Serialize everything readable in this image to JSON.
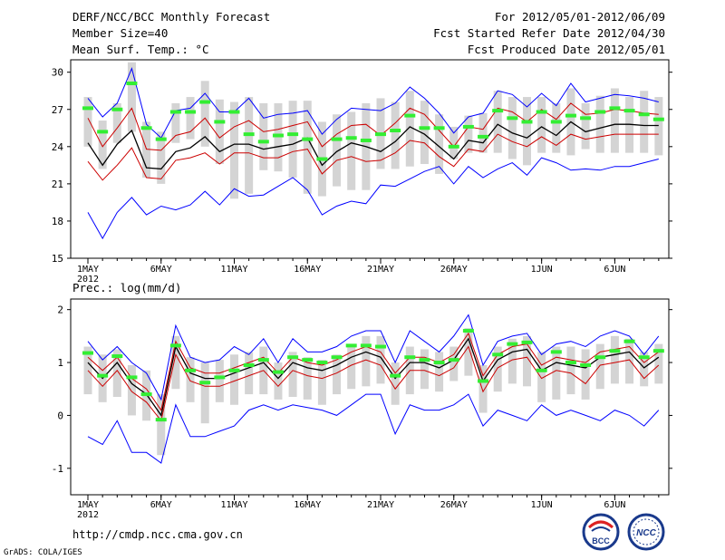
{
  "header": {
    "title": "DERF/NCC/BCC Monthly Forecast",
    "member_size": "Member Size=40",
    "variable_top": "Mean Surf. Temp.: °C",
    "period": "For 2012/05/01-2012/06/09",
    "refer_date": "Fcst Started Refer Date 2012/04/30",
    "produced_date": "Fcst Produced Date 2012/05/01"
  },
  "footer": {
    "url": "http://cmdp.ncc.cma.gov.cn",
    "grads": "GrADS: COLA/IGES"
  },
  "logos": {
    "bcc_text": "BCC",
    "ncc_text": "NCC"
  },
  "colors": {
    "envelope": "#0000ff",
    "spread": "#cc0000",
    "mean": "#000000",
    "marker": "#33ee33",
    "box": "#d4d4d4"
  },
  "chart_data": [
    {
      "type": "line",
      "title": "Mean Surf. Temp.: °C",
      "ylim": [
        15,
        31
      ],
      "yticks": [
        15,
        18,
        21,
        24,
        27,
        30
      ],
      "xticks": [
        {
          "day": 1,
          "label": "1MAY"
        },
        {
          "day": 6,
          "label": "6MAY"
        },
        {
          "day": 11,
          "label": "11MAY"
        },
        {
          "day": 16,
          "label": "16MAY"
        },
        {
          "day": 21,
          "label": "21MAY"
        },
        {
          "day": 26,
          "label": "26MAY"
        },
        {
          "day": 32,
          "label": "1JUN"
        },
        {
          "day": 37,
          "label": "6JUN"
        }
      ],
      "year_label": "2012",
      "days": [
        1,
        2,
        3,
        4,
        5,
        6,
        7,
        8,
        9,
        10,
        11,
        12,
        13,
        14,
        15,
        16,
        17,
        18,
        19,
        20,
        21,
        22,
        23,
        24,
        25,
        26,
        27,
        28,
        29,
        30,
        31,
        32,
        33,
        34,
        35,
        36,
        37,
        38,
        39,
        40
      ],
      "series": [
        {
          "name": "max",
          "color": "#0000ff",
          "values": [
            27.9,
            26.4,
            27.5,
            30.3,
            25.8,
            24.7,
            26.9,
            27.1,
            28.3,
            26.8,
            26.8,
            27.9,
            26.3,
            26.6,
            26.7,
            26.9,
            25.0,
            26.2,
            27.1,
            27.0,
            26.9,
            27.5,
            28.8,
            27.9,
            26.7,
            25.1,
            26.4,
            26.7,
            28.5,
            28.2,
            27.2,
            28.3,
            27.3,
            29.1,
            27.6,
            27.9,
            28.2,
            28.1,
            27.9,
            27.6
          ]
        },
        {
          "name": "p75",
          "color": "#cc0000",
          "values": [
            26.3,
            24.0,
            25.5,
            27.1,
            23.8,
            23.7,
            24.9,
            25.2,
            26.3,
            24.7,
            25.6,
            26.1,
            25.2,
            25.4,
            25.7,
            26.0,
            24.0,
            25.0,
            25.7,
            25.8,
            24.9,
            25.9,
            27.1,
            26.6,
            25.3,
            24.0,
            25.6,
            25.4,
            27.1,
            26.8,
            26.0,
            27.0,
            26.2,
            27.5,
            26.6,
            26.7,
            27.0,
            26.9,
            26.7,
            26.6
          ]
        },
        {
          "name": "mean",
          "color": "#000000",
          "values": [
            24.3,
            22.5,
            24.2,
            25.3,
            22.3,
            22.2,
            23.6,
            23.9,
            24.8,
            23.6,
            24.2,
            24.2,
            23.8,
            24.0,
            24.2,
            24.7,
            22.5,
            23.6,
            24.3,
            24.0,
            23.6,
            24.4,
            25.6,
            25.0,
            24.0,
            23.0,
            24.5,
            24.3,
            25.8,
            25.1,
            24.7,
            25.6,
            24.9,
            26.0,
            25.2,
            25.5,
            25.8,
            25.8,
            25.7,
            25.7
          ]
        },
        {
          "name": "p25",
          "color": "#cc0000",
          "values": [
            22.8,
            21.3,
            22.5,
            23.9,
            21.5,
            21.4,
            22.9,
            23.1,
            23.5,
            22.6,
            23.5,
            23.5,
            23.1,
            23.1,
            23.6,
            23.8,
            21.8,
            22.9,
            23.2,
            22.8,
            22.9,
            23.5,
            24.5,
            24.3,
            23.2,
            22.4,
            23.8,
            23.6,
            25.0,
            24.4,
            24.0,
            24.8,
            24.1,
            25.0,
            24.6,
            24.8,
            25.0,
            25.0,
            25.0,
            25.0
          ]
        },
        {
          "name": "min",
          "color": "#0000ff",
          "values": [
            18.7,
            16.6,
            18.7,
            19.9,
            18.5,
            19.2,
            18.9,
            19.3,
            20.4,
            19.3,
            20.6,
            20.0,
            20.1,
            20.8,
            21.5,
            20.5,
            18.5,
            19.2,
            19.6,
            19.4,
            20.9,
            20.8,
            21.4,
            22.0,
            22.4,
            21.0,
            22.4,
            21.5,
            22.2,
            22.7,
            21.7,
            23.1,
            22.7,
            22.1,
            22.2,
            22.1,
            22.4,
            22.4,
            22.7,
            23.0
          ]
        }
      ],
      "box_top": [
        28.0,
        26.1,
        27.5,
        30.8,
        26.0,
        25.2,
        27.5,
        28.0,
        29.3,
        27.8,
        27.6,
        28.0,
        27.5,
        27.5,
        27.7,
        27.7,
        26.0,
        26.6,
        26.8,
        27.5,
        27.9,
        27.6,
        28.5,
        27.7,
        26.6,
        25.6,
        26.5,
        26.7,
        28.5,
        28.0,
        28.0,
        28.0,
        27.5,
        28.7,
        27.5,
        28.1,
        28.7,
        28.0,
        28.5,
        28.0
      ],
      "box_bottom": [
        24.0,
        22.2,
        24.3,
        25.2,
        21.5,
        21.0,
        24.3,
        24.6,
        24.0,
        22.6,
        19.8,
        20.2,
        22.1,
        22.0,
        21.5,
        20.2,
        20.0,
        20.8,
        20.5,
        20.5,
        22.2,
        22.2,
        22.4,
        22.6,
        21.8,
        23.0,
        23.5,
        23.5,
        23.5,
        23.0,
        22.5,
        23.5,
        23.5,
        23.3,
        23.8,
        23.5,
        23.5,
        23.5,
        23.5,
        23.3
      ],
      "markers": [
        27.1,
        25.2,
        27.0,
        29.1,
        25.5,
        24.6,
        26.8,
        26.8,
        27.6,
        26.0,
        26.8,
        25.0,
        24.4,
        24.9,
        25.0,
        24.6,
        23.0,
        24.6,
        24.7,
        24.5,
        25.0,
        25.3,
        26.5,
        25.5,
        25.5,
        24.0,
        25.6,
        24.8,
        26.9,
        26.3,
        26.0,
        26.8,
        26.0,
        26.5,
        26.3,
        26.8,
        27.1,
        26.9,
        26.6,
        26.2
      ]
    },
    {
      "type": "line",
      "title": "Prec.: log(mm/d)",
      "ylim": [
        -1.5,
        2.2
      ],
      "yticks": [
        -1,
        0,
        1,
        2
      ],
      "xticks": [
        {
          "day": 1,
          "label": "1MAY"
        },
        {
          "day": 6,
          "label": "6MAY"
        },
        {
          "day": 11,
          "label": "11MAY"
        },
        {
          "day": 16,
          "label": "16MAY"
        },
        {
          "day": 21,
          "label": "21MAY"
        },
        {
          "day": 26,
          "label": "26MAY"
        },
        {
          "day": 32,
          "label": "1JUN"
        },
        {
          "day": 37,
          "label": "6JUN"
        }
      ],
      "year_label": "2012",
      "days": [
        1,
        2,
        3,
        4,
        5,
        6,
        7,
        8,
        9,
        10,
        11,
        12,
        13,
        14,
        15,
        16,
        17,
        18,
        19,
        20,
        21,
        22,
        23,
        24,
        25,
        26,
        27,
        28,
        29,
        30,
        31,
        32,
        33,
        34,
        35,
        36,
        37,
        38,
        39,
        40
      ],
      "series": [
        {
          "name": "max",
          "color": "#0000ff",
          "values": [
            1.4,
            1.05,
            1.3,
            1.0,
            0.8,
            0.3,
            1.7,
            1.1,
            1.0,
            1.05,
            1.3,
            1.15,
            1.45,
            1.0,
            1.45,
            1.2,
            1.2,
            1.3,
            1.5,
            1.6,
            1.6,
            1.0,
            1.6,
            1.4,
            1.2,
            1.5,
            1.9,
            0.95,
            1.4,
            1.5,
            1.55,
            1.15,
            1.35,
            1.4,
            1.3,
            1.5,
            1.6,
            1.5,
            1.15,
            1.5
          ]
        },
        {
          "name": "p75",
          "color": "#cc0000",
          "values": [
            1.1,
            0.85,
            1.1,
            0.7,
            0.5,
            0.1,
            1.4,
            0.9,
            0.8,
            0.8,
            0.9,
            1.0,
            1.1,
            0.8,
            1.1,
            1.0,
            0.95,
            1.05,
            1.2,
            1.3,
            1.2,
            0.8,
            1.1,
            1.1,
            1.0,
            1.15,
            1.55,
            0.75,
            1.15,
            1.3,
            1.35,
            0.95,
            1.1,
            1.05,
            1.0,
            1.2,
            1.25,
            1.3,
            1.0,
            1.2
          ]
        },
        {
          "name": "mean",
          "color": "#000000",
          "values": [
            1.0,
            0.7,
            1.0,
            0.6,
            0.4,
            0.0,
            1.3,
            0.8,
            0.7,
            0.7,
            0.8,
            0.9,
            1.0,
            0.7,
            1.0,
            0.9,
            0.85,
            0.95,
            1.1,
            1.2,
            1.1,
            0.7,
            1.0,
            1.0,
            0.9,
            1.05,
            1.45,
            0.65,
            1.05,
            1.2,
            1.25,
            0.85,
            1.0,
            0.95,
            0.9,
            1.1,
            1.15,
            1.2,
            0.9,
            1.1
          ]
        },
        {
          "name": "p25",
          "color": "#cc0000",
          "values": [
            0.85,
            0.55,
            0.85,
            0.45,
            0.25,
            -0.1,
            1.15,
            0.65,
            0.55,
            0.55,
            0.65,
            0.75,
            0.85,
            0.55,
            0.85,
            0.75,
            0.7,
            0.8,
            0.95,
            1.05,
            0.95,
            0.5,
            0.85,
            0.85,
            0.75,
            0.9,
            1.3,
            0.45,
            0.9,
            1.05,
            1.1,
            0.7,
            0.85,
            0.8,
            0.6,
            0.95,
            1.0,
            1.05,
            0.7,
            0.95
          ]
        },
        {
          "name": "min",
          "color": "#0000ff",
          "values": [
            -0.4,
            -0.55,
            -0.1,
            -0.7,
            -0.7,
            -0.9,
            0.2,
            -0.4,
            -0.4,
            -0.3,
            -0.2,
            0.1,
            0.2,
            0.1,
            0.2,
            0.15,
            0.1,
            0.0,
            0.2,
            0.4,
            0.4,
            -0.35,
            0.2,
            0.1,
            0.1,
            0.2,
            0.4,
            -0.2,
            0.1,
            0.0,
            -0.1,
            0.2,
            0.0,
            0.1,
            0.0,
            -0.1,
            0.1,
            0.0,
            -0.2,
            0.1
          ]
        },
        {
          "name": "box_top_hidden",
          "color": "none",
          "values": []
        }
      ],
      "box_top": [
        1.3,
        1.15,
        1.25,
        0.95,
        0.85,
        0.4,
        1.5,
        1.1,
        1.0,
        1.05,
        1.15,
        1.2,
        1.3,
        1.0,
        1.2,
        1.1,
        1.05,
        1.15,
        1.35,
        1.5,
        1.5,
        1.0,
        1.3,
        1.25,
        1.2,
        1.3,
        1.65,
        0.95,
        1.3,
        1.45,
        1.5,
        1.2,
        1.3,
        1.3,
        1.25,
        1.35,
        1.5,
        1.45,
        1.2,
        1.35
      ],
      "box_bottom": [
        0.4,
        0.25,
        0.35,
        0.0,
        -0.1,
        -0.75,
        0.5,
        0.25,
        -0.15,
        0.25,
        0.2,
        0.4,
        0.4,
        0.3,
        0.35,
        0.3,
        0.2,
        0.4,
        0.5,
        0.55,
        0.6,
        0.2,
        0.4,
        0.5,
        0.45,
        0.65,
        0.75,
        0.05,
        0.45,
        0.6,
        0.55,
        0.25,
        0.3,
        0.4,
        0.3,
        0.5,
        0.6,
        0.6,
        0.55,
        0.6
      ],
      "markers": [
        1.18,
        0.75,
        1.12,
        0.72,
        0.4,
        -0.08,
        1.32,
        0.85,
        0.62,
        0.72,
        0.85,
        0.95,
        1.05,
        0.82,
        1.1,
        1.05,
        1.0,
        1.1,
        1.32,
        1.32,
        1.3,
        0.75,
        1.1,
        1.05,
        1.0,
        1.05,
        1.6,
        0.65,
        1.15,
        1.35,
        1.38,
        0.85,
        1.2,
        1.0,
        0.95,
        1.1,
        1.22,
        1.4,
        1.1,
        1.22
      ]
    }
  ]
}
